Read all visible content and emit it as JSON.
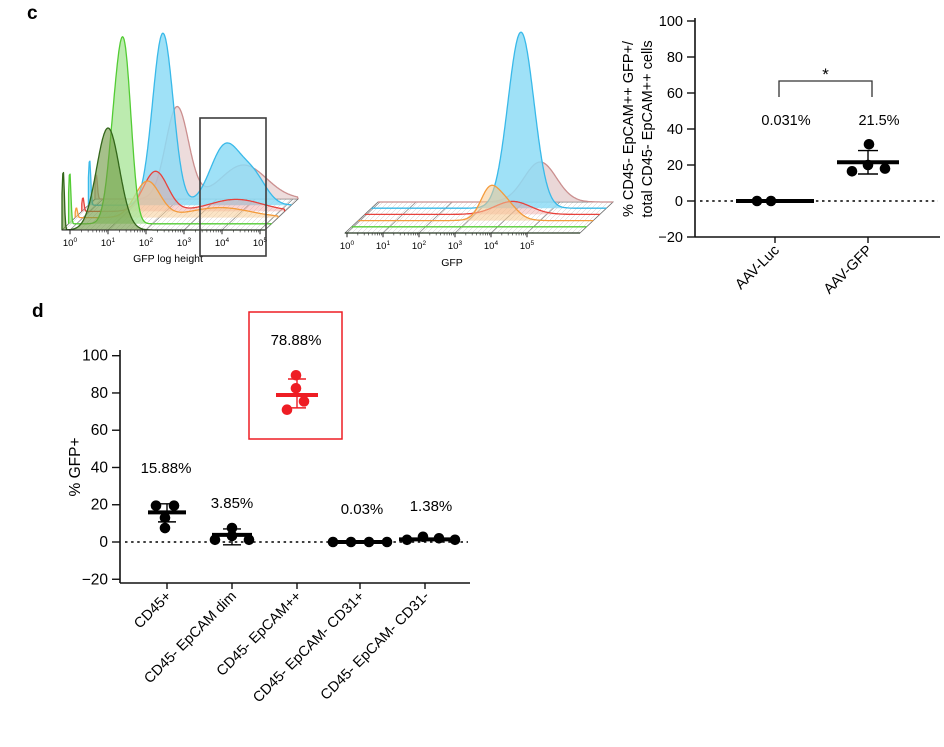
{
  "panels": {
    "c_label": "c",
    "d_label": "d"
  },
  "colors": {
    "black": "#000000",
    "highlight_red": "#ee1d24",
    "axis": "#1a1a1a",
    "grid": "#8a8a8a",
    "hatch": "#c9c9c9"
  },
  "chart_data": [
    {
      "id": "flow_gfp_log_height",
      "type": "area",
      "subtype": "flow-cytometry-offset-overlay-histogram",
      "xlabel": "GFP log height",
      "x_tick_base": "10",
      "x_tick_exponents": [
        0,
        1,
        2,
        3,
        4,
        5
      ],
      "x_scale": "log",
      "gate_box": true,
      "gate_range_exponents": [
        3.5,
        5.2
      ],
      "series": [
        {
          "name": "dark-green",
          "stroke": "#33661a",
          "fill": "#6f9a42",
          "fill_opacity": 0.62,
          "peaks": [
            {
              "c": -0.18,
              "w": 0.03,
              "h": 60
            },
            {
              "c": 1.0,
              "w": 0.3,
              "h": 102
            }
          ]
        },
        {
          "name": "light-green",
          "stroke": "#53cc34",
          "fill": "#a9e698",
          "fill_opacity": 0.78,
          "peaks": [
            {
              "c": -0.18,
              "w": 0.03,
              "h": 52
            },
            {
              "c": 1.06,
              "w": 0.2,
              "h": 112
            },
            {
              "c": 1.3,
              "w": 0.17,
              "h": 118
            }
          ]
        },
        {
          "name": "orange",
          "stroke": "#f49b3c",
          "fill": "#f7c98e",
          "fill_opacity": 0.5,
          "peaks": [
            {
              "c": -0.18,
              "w": 0.028,
              "h": 10
            },
            {
              "c": 1.69,
              "w": 0.33,
              "h": 36
            },
            {
              "c": 3.6,
              "w": 0.8,
              "h": 10
            }
          ]
        },
        {
          "name": "red",
          "stroke": "#e7423c",
          "fill": "#f09a96",
          "fill_opacity": 0.42,
          "peaks": [
            {
              "c": -0.18,
              "w": 0.028,
              "h": 14
            },
            {
              "c": 1.73,
              "w": 0.32,
              "h": 40
            },
            {
              "c": 3.85,
              "w": 0.7,
              "h": 12
            }
          ]
        },
        {
          "name": "cyan",
          "stroke": "#39b9e9",
          "fill": "#8edcf6",
          "fill_opacity": 0.85,
          "peaks": [
            {
              "c": -0.18,
              "w": 0.03,
              "h": 46
            },
            {
              "c": 1.75,
              "w": 0.27,
              "h": 172
            },
            {
              "c": 3.4,
              "w": 0.4,
              "h": 60
            },
            {
              "c": 4.15,
              "w": 0.33,
              "h": 26
            }
          ]
        },
        {
          "name": "rosy-pink",
          "stroke": "#cb8f8f",
          "fill": "#dcb9b9",
          "fill_opacity": 0.5,
          "peaks": [
            {
              "c": -0.18,
              "w": 0.03,
              "h": 25
            },
            {
              "c": 1.95,
              "w": 0.3,
              "h": 92
            },
            {
              "c": 3.7,
              "w": 0.6,
              "h": 34
            }
          ]
        }
      ]
    },
    {
      "id": "flow_gfp",
      "type": "area",
      "subtype": "flow-cytometry-offset-overlay-histogram",
      "xlabel": "GFP",
      "x_tick_base": "10",
      "x_tick_exponents": [
        0,
        1,
        2,
        3,
        4,
        5
      ],
      "x_scale": "log",
      "gate_box": false,
      "series": [
        {
          "name": "dark-green",
          "stroke": "#2f8a1f",
          "fill": "none",
          "fill_opacity": 0,
          "peaks": []
        },
        {
          "name": "light-green",
          "stroke": "#55cd36",
          "fill": "none",
          "fill_opacity": 0,
          "peaks": []
        },
        {
          "name": "orange",
          "stroke": "#f49b3c",
          "fill": "#f7c98e",
          "fill_opacity": 0.55,
          "peaks": [
            {
              "c": 3.55,
              "w": 0.22,
              "h": 14
            },
            {
              "c": 3.85,
              "w": 0.38,
              "h": 26
            }
          ]
        },
        {
          "name": "red",
          "stroke": "#e7423c",
          "fill": "#f09a96",
          "fill_opacity": 0.4,
          "peaks": [
            {
              "c": 4.05,
              "w": 0.5,
              "h": 13
            }
          ]
        },
        {
          "name": "cyan",
          "stroke": "#39b9e9",
          "fill": "#8edcf6",
          "fill_opacity": 0.85,
          "peaks": [
            {
              "c": 4.1,
              "w": 0.36,
              "h": 176
            }
          ]
        },
        {
          "name": "rosy-pink",
          "stroke": "#cb8f8f",
          "fill": "#d9b6b6",
          "fill_opacity": 0.55,
          "peaks": [
            {
              "c": 4.45,
              "w": 0.45,
              "h": 40
            }
          ]
        }
      ]
    },
    {
      "id": "scatter_c",
      "type": "scatter",
      "ylabel_lines": [
        "% CD45- EpCAM++ GFP+/",
        "total CD45- EpCAM++  cells"
      ],
      "yticks": [
        100,
        80,
        60,
        40,
        20,
        0,
        -20
      ],
      "ylim": [
        -20,
        100
      ],
      "zero_line": "dotted",
      "categories": [
        "AAV-Luc",
        "AAV-GFP"
      ],
      "groups": [
        {
          "category": "AAV-Luc",
          "color": "#000000",
          "mean": 0.031,
          "annotation": "0.031%",
          "points": [
            {
              "dx": -18,
              "v": 0
            },
            {
              "dx": -4,
              "v": 0
            }
          ]
        },
        {
          "category": "AAV-GFP",
          "color": "#000000",
          "mean": 21.5,
          "sd_low": 15,
          "sd_high": 28,
          "annotation": "21.5%",
          "points": [
            {
              "dx": 1,
              "v": 31.5
            },
            {
              "dx": -16,
              "v": 16.5
            },
            {
              "dx": 0,
              "v": 20
            },
            {
              "dx": 17,
              "v": 18
            }
          ]
        }
      ],
      "significance": {
        "label": "*",
        "between": [
          "AAV-Luc",
          "AAV-GFP"
        ]
      }
    },
    {
      "id": "scatter_d",
      "type": "scatter",
      "ylabel": "% GFP+",
      "yticks": [
        100,
        80,
        60,
        40,
        20,
        0,
        -20
      ],
      "ylim": [
        -20,
        100
      ],
      "zero_line": "dotted",
      "categories": [
        "CD45+",
        "CD45- EpCAM dim",
        "CD45- EpCAM++",
        "CD45- EpCAM- CD31+",
        "CD45- EpCAM- CD31-"
      ],
      "groups": [
        {
          "category": "CD45+",
          "color": "#000000",
          "mean": 15.88,
          "sd_low": 10.8,
          "sd_high": 20.5,
          "annotation": "15.88%",
          "points": [
            {
              "dx": -11,
              "v": 19.5
            },
            {
              "dx": 7,
              "v": 19.5
            },
            {
              "dx": -2,
              "v": 13
            },
            {
              "dx": -2,
              "v": 7.5
            }
          ]
        },
        {
          "category": "CD45- EpCAM dim",
          "color": "#000000",
          "mean": 3.85,
          "sd_low": -1.5,
          "sd_high": 7.0,
          "annotation": "3.85%",
          "points": [
            {
              "dx": -17,
              "v": 1.2
            },
            {
              "dx": 0,
              "v": 3.3
            },
            {
              "dx": 0,
              "v": 7.5
            },
            {
              "dx": 17,
              "v": 1.2
            }
          ]
        },
        {
          "category": "CD45- EpCAM++",
          "color": "#ee1d24",
          "mean": 78.88,
          "sd_low": 72,
          "sd_high": 87.5,
          "annotation": "78.88%",
          "highlight_box": true,
          "points": [
            {
              "dx": -1,
              "v": 89.5
            },
            {
              "dx": -1,
              "v": 82.5
            },
            {
              "dx": 7,
              "v": 75.5
            },
            {
              "dx": -10,
              "v": 71
            }
          ]
        },
        {
          "category": "CD45- EpCAM- CD31+",
          "color": "#000000",
          "mean": 0.03,
          "annotation": "0.03%",
          "points": [
            {
              "dx": -27,
              "v": 0
            },
            {
              "dx": -9,
              "v": 0
            },
            {
              "dx": 9,
              "v": 0
            },
            {
              "dx": 27,
              "v": 0
            }
          ]
        },
        {
          "category": "CD45- EpCAM- CD31-",
          "color": "#000000",
          "mean": 1.38,
          "annotation": "1.38%",
          "points": [
            {
              "dx": -18,
              "v": 1.2
            },
            {
              "dx": -2,
              "v": 2.8
            },
            {
              "dx": 14,
              "v": 2.0
            },
            {
              "dx": 30,
              "v": 1.2
            }
          ]
        }
      ]
    }
  ]
}
